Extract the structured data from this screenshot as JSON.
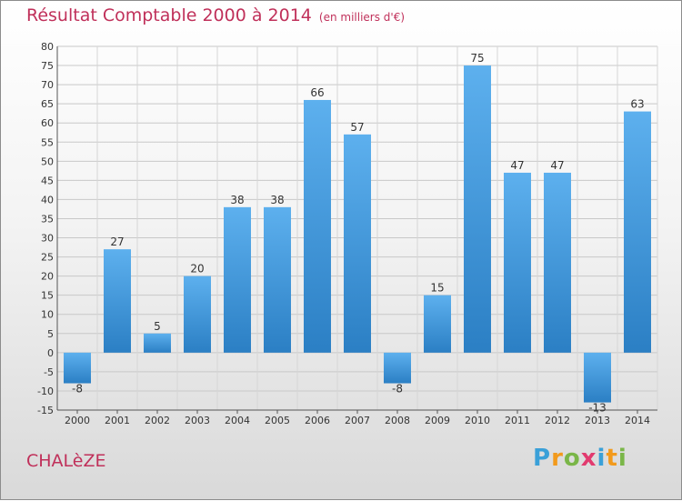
{
  "chart_data": {
    "type": "bar",
    "title": "Résultat Comptable 2000 à 2014",
    "subtitle": "(en milliers d'€)",
    "categories": [
      "2000",
      "2001",
      "2002",
      "2003",
      "2004",
      "2005",
      "2006",
      "2007",
      "2008",
      "2009",
      "2010",
      "2011",
      "2012",
      "2013",
      "2014"
    ],
    "values": [
      -8,
      27,
      5,
      20,
      38,
      38,
      66,
      57,
      -8,
      15,
      75,
      47,
      47,
      -13,
      63
    ],
    "ylim": [
      -15,
      80
    ],
    "yticks": [
      -15,
      -10,
      -5,
      0,
      5,
      10,
      15,
      20,
      25,
      30,
      35,
      40,
      45,
      50,
      55,
      60,
      65,
      70,
      75,
      80
    ],
    "grid": true,
    "bar_color": "#4a9ee0"
  },
  "footer": {
    "commune": "CHALèZE",
    "brand": [
      "P",
      "r",
      "o",
      "x",
      "i",
      "t",
      "i"
    ],
    "brand_colors": [
      "#3aa0d8",
      "#f29a1c",
      "#7ab648",
      "#e23b6f",
      "#3aa0d8",
      "#f29a1c",
      "#7ab648"
    ]
  }
}
